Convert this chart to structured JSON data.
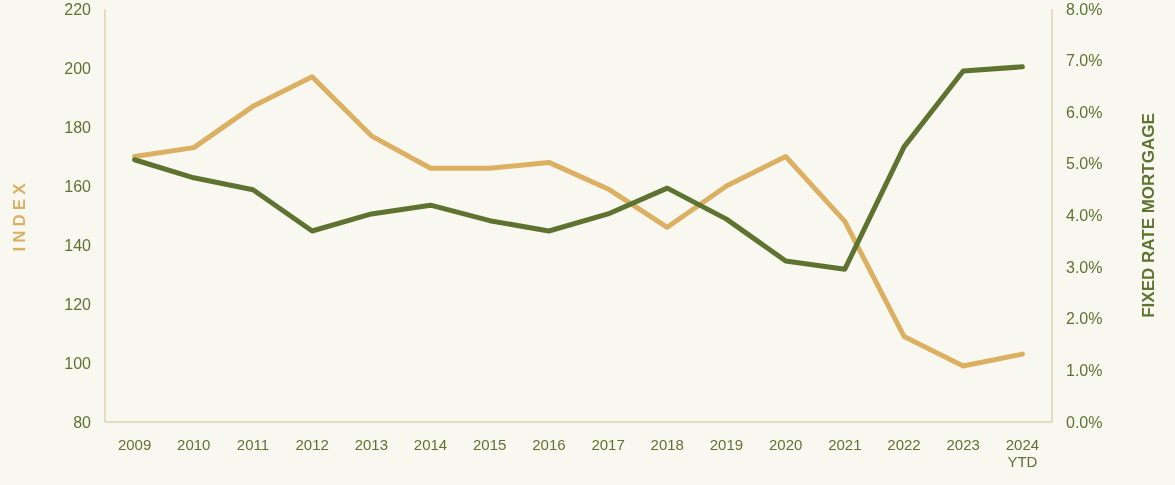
{
  "chart_data": {
    "type": "line",
    "ylabel": "INDEX",
    "y2label": "FIXED RATE MORTGAGE",
    "categories": [
      "2009",
      "2010",
      "2011",
      "2012",
      "2013",
      "2014",
      "2015",
      "2016",
      "2017",
      "2018",
      "2019",
      "2020",
      "2021",
      "2022",
      "2023",
      "2024\nYTD"
    ],
    "series": [
      {
        "color": "#dcb062",
        "values": [
          170,
          173,
          187,
          197,
          177,
          166,
          166,
          168,
          159,
          146,
          160,
          170,
          148,
          109,
          99,
          103
        ]
      },
      {
        "color": "#5f7331",
        "axis": "y2",
        "values": [
          5.08,
          4.73,
          4.5,
          3.7,
          4.03,
          4.2,
          3.9,
          3.7,
          4.03,
          4.53,
          3.93,
          3.12,
          2.96,
          5.33,
          6.8,
          6.88
        ]
      }
    ],
    "ylim": [
      80,
      220
    ],
    "yticks": [
      80,
      100,
      120,
      140,
      160,
      180,
      200,
      220
    ],
    "y2lim": [
      0,
      8
    ],
    "y2ticks": [
      {
        "value": 0,
        "label": "0.0%"
      },
      {
        "value": 1,
        "label": "1.0%"
      },
      {
        "value": 2,
        "label": "2.0%"
      },
      {
        "value": 3,
        "label": "3.0%"
      },
      {
        "value": 4,
        "label": "4.0%"
      },
      {
        "value": 5,
        "label": "5.0%"
      },
      {
        "value": 6,
        "label": "6.0%"
      },
      {
        "value": 7,
        "label": "7.0%"
      },
      {
        "value": 8,
        "label": "8.0%"
      }
    ],
    "grid": false,
    "marker": "none",
    "line_style": "solid"
  }
}
